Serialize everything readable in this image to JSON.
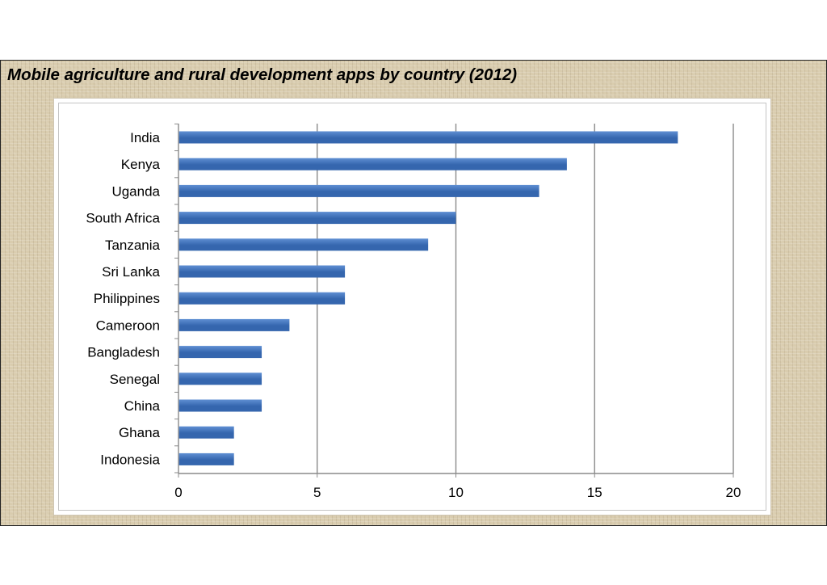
{
  "slide": {
    "title": "Mobile agriculture and rural development apps by country (2012)"
  },
  "chart_data": {
    "type": "bar",
    "orientation": "horizontal",
    "title": "Mobile agriculture and rural development apps by country (2012)",
    "xlabel": "",
    "ylabel": "",
    "categories": [
      "India",
      "Kenya",
      "Uganda",
      "South Africa",
      "Tanzania",
      "Sri Lanka",
      "Philippines",
      "Cameroon",
      "Bangladesh",
      "Senegal",
      "China",
      "Ghana",
      "Indonesia"
    ],
    "values": [
      18,
      14,
      13,
      10,
      9,
      6,
      6,
      4,
      3,
      3,
      3,
      2,
      2
    ],
    "xlim": [
      0,
      20
    ],
    "xticks": [
      0,
      5,
      10,
      15,
      20
    ],
    "grid": true,
    "legend": "none",
    "bar_color": "#3566ae",
    "bar_color_light": "#5f8fd3",
    "grid_color": "#8a8a8a"
  }
}
